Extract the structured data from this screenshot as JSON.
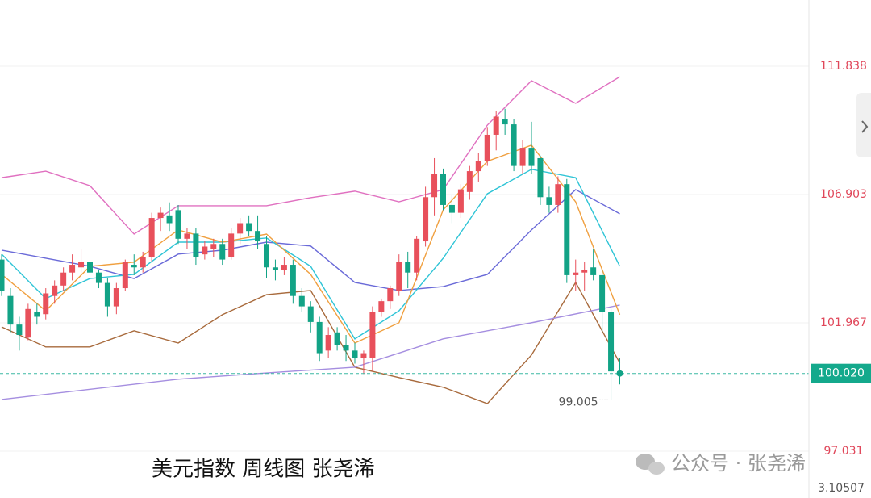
{
  "chart_data": {
    "type": "candlestick",
    "caption": "美元指数 周线图 张尧浠",
    "watermark": "公众号 · 张尧浠",
    "corner_text": "3.10507",
    "up_color": "#e8505b",
    "down_color": "#12a386",
    "open": [
      104.4,
      103.0,
      101.9,
      101.4,
      102.4,
      102.3,
      103.0,
      103.4,
      103.9,
      104.1,
      104.3,
      103.9,
      103.5,
      102.6,
      103.3,
      104.2,
      104.1,
      104.5,
      106.0,
      106.1,
      106.3,
      105.2,
      105.4,
      104.6,
      104.8,
      105.0,
      104.5,
      105.4,
      105.8,
      105.5,
      105.0,
      104.1,
      104.0,
      104.2,
      103.0,
      102.6,
      102.0,
      100.9,
      101.6,
      101.1,
      100.9,
      100.6,
      100.6,
      102.4,
      102.8,
      103.2,
      104.3,
      103.9,
      105.1,
      106.8,
      107.7,
      106.5,
      106.2,
      107.0,
      107.8,
      108.2,
      109.2,
      109.8,
      109.6,
      108.0,
      108.7,
      108.3,
      106.8,
      106.5,
      107.3,
      103.8,
      103.9,
      104.1,
      103.8,
      102.4,
      100.1
    ],
    "high": [
      104.6,
      103.3,
      102.2,
      102.7,
      102.7,
      103.3,
      103.6,
      104.1,
      104.6,
      104.8,
      104.4,
      104.0,
      103.7,
      103.5,
      104.4,
      104.6,
      104.7,
      106.2,
      106.4,
      106.6,
      106.5,
      105.6,
      105.6,
      105.1,
      105.2,
      105.2,
      105.6,
      106.0,
      106.1,
      106.1,
      105.3,
      104.4,
      104.5,
      104.4,
      103.3,
      102.8,
      102.2,
      101.8,
      101.8,
      101.5,
      101.2,
      100.9,
      102.6,
      102.9,
      103.4,
      104.6,
      104.7,
      105.3,
      107.2,
      108.3,
      107.9,
      106.9,
      107.3,
      108.0,
      108.5,
      109.5,
      110.1,
      110.2,
      109.8,
      109.0,
      109.7,
      108.4,
      107.2,
      107.6,
      107.5,
      104.4,
      104.3,
      104.8,
      104.0,
      102.5,
      100.6
    ],
    "low": [
      103.0,
      101.6,
      100.9,
      101.3,
      101.9,
      102.1,
      102.7,
      103.2,
      103.6,
      103.9,
      103.7,
      103.3,
      102.2,
      102.3,
      103.2,
      103.8,
      103.9,
      104.3,
      105.5,
      105.5,
      105.0,
      104.8,
      104.2,
      104.4,
      104.5,
      104.2,
      104.4,
      105.0,
      105.3,
      104.8,
      103.7,
      103.6,
      103.8,
      102.7,
      102.4,
      101.6,
      100.5,
      100.6,
      100.9,
      100.5,
      100.4,
      100.0,
      100.1,
      102.2,
      102.5,
      103.0,
      103.3,
      103.6,
      104.9,
      106.1,
      106.3,
      105.8,
      106.0,
      106.7,
      107.4,
      108.0,
      108.6,
      109.2,
      107.8,
      107.7,
      107.7,
      106.5,
      106.2,
      106.2,
      103.5,
      103.2,
      103.2,
      103.6,
      101.6,
      99.005,
      99.6
    ],
    "close": [
      103.2,
      101.9,
      101.5,
      102.5,
      102.2,
      103.1,
      103.4,
      103.9,
      104.2,
      104.3,
      103.9,
      103.5,
      102.6,
      103.3,
      104.3,
      104.1,
      104.5,
      106.0,
      106.2,
      105.8,
      105.2,
      105.4,
      104.5,
      104.9,
      105.0,
      104.4,
      105.4,
      105.8,
      105.5,
      105.1,
      104.1,
      104.0,
      104.2,
      103.0,
      102.6,
      102.0,
      100.8,
      101.5,
      101.1,
      100.9,
      100.6,
      100.8,
      102.4,
      102.8,
      103.3,
      104.3,
      103.9,
      105.2,
      106.8,
      107.7,
      106.5,
      106.2,
      107.1,
      107.8,
      108.2,
      109.2,
      109.9,
      109.6,
      108.0,
      108.7,
      108.0,
      106.8,
      106.5,
      107.3,
      103.8,
      103.9,
      104.0,
      103.8,
      102.4,
      100.1,
      100.02
    ],
    "overlays": [
      {
        "color": "#e070c0",
        "x": [
          0,
          5,
          10,
          15,
          20,
          25,
          30,
          35,
          40,
          45,
          50,
          55,
          60,
          65,
          70
        ],
        "values": [
          107.55,
          107.8,
          107.24,
          105.38,
          106.47,
          106.47,
          106.47,
          106.78,
          107.03,
          106.62,
          107.09,
          109.57,
          111.28,
          110.41,
          111.43
        ]
      },
      {
        "color": "#a86a3c",
        "x": [
          0,
          5,
          10,
          15,
          20,
          25,
          30,
          35,
          40,
          45,
          50,
          55,
          60,
          65,
          70
        ],
        "values": [
          101.81,
          101.04,
          101.04,
          101.66,
          101.19,
          102.28,
          103.05,
          103.21,
          100.26,
          99.86,
          99.49,
          98.86,
          100.73,
          103.52,
          100.42
        ]
      },
      {
        "color": "#6a6ad8",
        "x": [
          0,
          5,
          10,
          15,
          20,
          25,
          30,
          35,
          40,
          45,
          50,
          55,
          60,
          65,
          70
        ],
        "values": [
          104.76,
          104.45,
          104.14,
          103.67,
          104.61,
          104.76,
          105.07,
          104.92,
          103.52,
          103.21,
          103.36,
          103.83,
          105.54,
          107.09,
          106.16
        ]
      },
      {
        "color": "#a58ee0",
        "x": [
          0,
          20,
          30,
          40,
          50,
          60,
          70
        ],
        "values": [
          99.02,
          99.8,
          100.04,
          100.26,
          101.35,
          101.97,
          102.65
        ]
      },
      {
        "color": "#2ec4d6",
        "x": [
          0,
          5,
          10,
          15,
          20,
          25,
          30,
          35,
          40,
          45,
          50,
          55,
          60,
          65,
          70
        ],
        "values": [
          104.61,
          102.9,
          103.67,
          103.83,
          105.07,
          105.07,
          105.23,
          104.14,
          101.35,
          102.43,
          104.45,
          106.93,
          107.87,
          107.55,
          104.14
        ]
      },
      {
        "color": "#f0a040",
        "x": [
          0,
          5,
          10,
          15,
          20,
          25,
          30,
          35,
          40,
          45,
          50,
          55,
          60,
          65,
          70
        ],
        "values": [
          103.83,
          102.43,
          104.14,
          104.3,
          105.54,
          105.07,
          105.38,
          103.83,
          101.19,
          101.97,
          106.31,
          108.18,
          108.8,
          106.62,
          102.28
        ]
      }
    ],
    "ylim": [
      95.23,
      114.383
    ],
    "yticks": [
      97.031,
      101.967,
      106.903,
      111.838
    ],
    "last_price": {
      "value": 100.02,
      "label": "100.020"
    },
    "grid": true
  }
}
